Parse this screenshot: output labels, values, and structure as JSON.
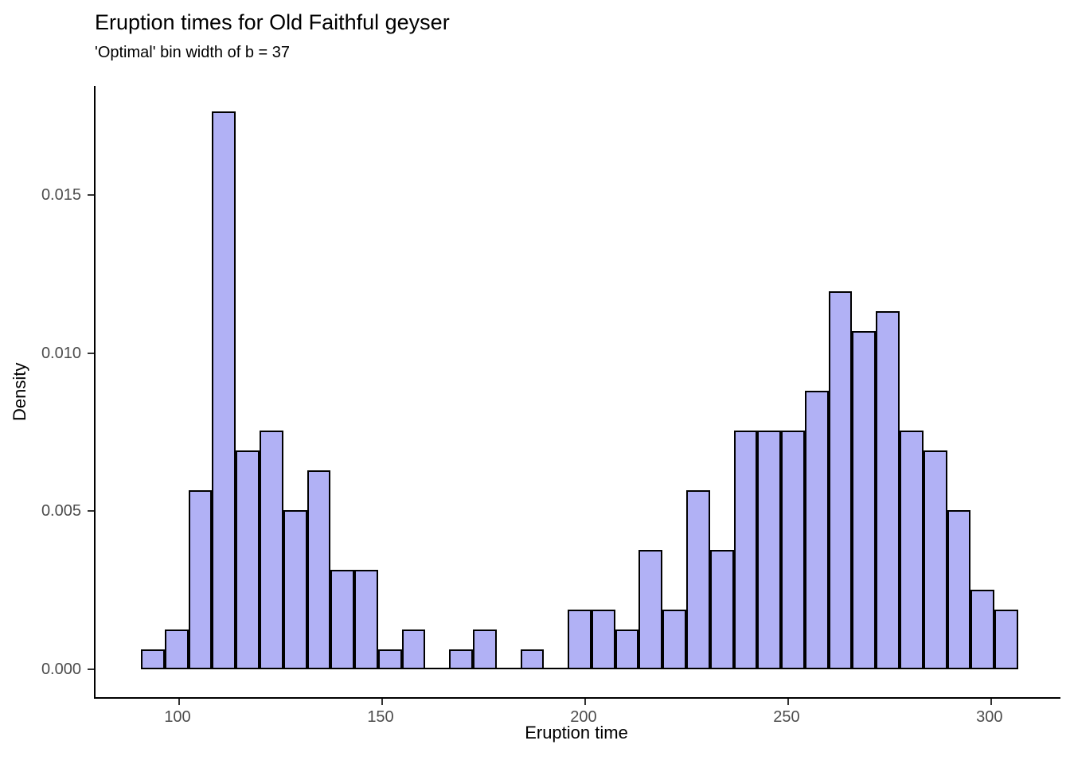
{
  "title": "Eruption times for Old Faithful geyser",
  "subtitle": "'Optimal' bin width of b = 37",
  "chart_data": {
    "type": "bar",
    "subtype": "histogram",
    "title": "Eruption times for Old Faithful geyser",
    "subtitle": "'Optimal' bin width of b = 37",
    "xlabel": "Eruption time",
    "ylabel": "Density",
    "grid": false,
    "legend": "none",
    "background": "#ffffff",
    "bar_fill": "#b1b1f5",
    "bar_stroke": "#000000",
    "axis_line_color": "#000000",
    "tick_label_color": "#4d4d4d",
    "x_domain": [
      79.4,
      317.1
    ],
    "y_domain": [
      -0.00088,
      0.01845
    ],
    "x_ticks": [
      {
        "value": 100,
        "label": "100"
      },
      {
        "value": 150,
        "label": "150"
      },
      {
        "value": 200,
        "label": "200"
      },
      {
        "value": 250,
        "label": "250"
      },
      {
        "value": 300,
        "label": "300"
      }
    ],
    "y_ticks": [
      {
        "value": 0.0,
        "label": "0.000"
      },
      {
        "value": 0.005,
        "label": "0.005"
      },
      {
        "value": 0.01,
        "label": "0.010"
      },
      {
        "value": 0.015,
        "label": "0.015"
      }
    ],
    "bin_start": 90.6,
    "bin_width": 5.84,
    "counts": [
      1,
      2,
      9,
      28,
      11,
      12,
      8,
      10,
      5,
      5,
      1,
      2,
      0,
      1,
      2,
      0,
      1,
      0,
      3,
      3,
      2,
      6,
      3,
      9,
      6,
      12,
      12,
      12,
      14,
      19,
      17,
      18,
      12,
      11,
      8,
      4,
      3
    ],
    "densities": [
      0.00063,
      0.00126,
      0.00567,
      0.01764,
      0.00693,
      0.00756,
      0.00504,
      0.0063,
      0.00315,
      0.00315,
      0.00063,
      0.00126,
      0,
      0.00063,
      0.00126,
      0,
      0.00063,
      0,
      0.00189,
      0.00189,
      0.00126,
      0.00378,
      0.00189,
      0.00567,
      0.00378,
      0.00756,
      0.00756,
      0.00756,
      0.00882,
      0.01197,
      0.01071,
      0.01134,
      0.00756,
      0.00693,
      0.00504,
      0.00252,
      0.00189
    ]
  }
}
